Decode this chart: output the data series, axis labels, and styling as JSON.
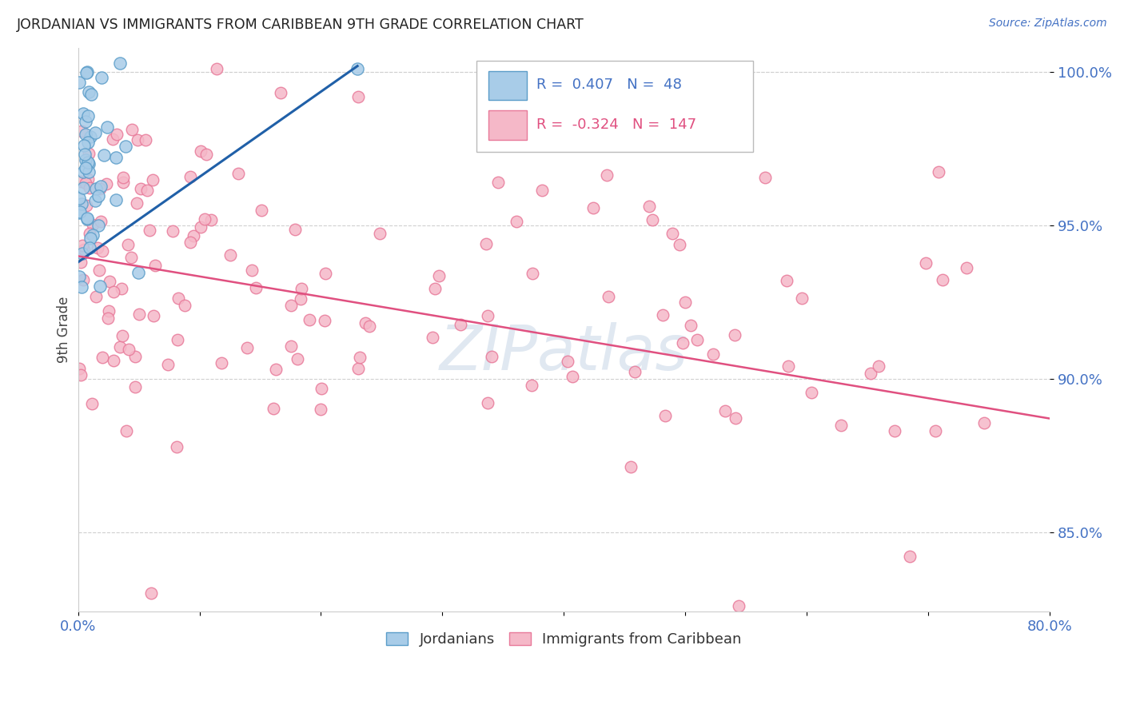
{
  "title": "JORDANIAN VS IMMIGRANTS FROM CARIBBEAN 9TH GRADE CORRELATION CHART",
  "source": "Source: ZipAtlas.com",
  "ylabel": "9th Grade",
  "xlim": [
    0.0,
    0.8
  ],
  "ylim": [
    0.824,
    1.008
  ],
  "yticks": [
    0.85,
    0.9,
    0.95,
    1.0
  ],
  "ytick_labels": [
    "85.0%",
    "90.0%",
    "95.0%",
    "100.0%"
  ],
  "xtick_labels": [
    "0.0%",
    "",
    "",
    "",
    "",
    "",
    "",
    "",
    "80.0%"
  ],
  "legend_r_blue": "0.407",
  "legend_n_blue": "48",
  "legend_r_pink": "-0.324",
  "legend_n_pink": "147",
  "legend_label_blue": "Jordanians",
  "legend_label_pink": "Immigrants from Caribbean",
  "blue_fill": "#a8cce8",
  "blue_edge": "#5b9dc9",
  "pink_fill": "#f5b8c8",
  "pink_edge": "#e87a9a",
  "blue_line": "#2060a8",
  "pink_line": "#e05080",
  "background_color": "#ffffff",
  "grid_color": "#d0d0d0",
  "title_color": "#222222",
  "tick_color": "#4472c4",
  "watermark_color": "#ccd9e8",
  "blue_trend_x": [
    0.0,
    0.23
  ],
  "blue_trend_y": [
    0.938,
    1.002
  ],
  "pink_trend_x": [
    0.0,
    0.8
  ],
  "pink_trend_y": [
    0.94,
    0.887
  ]
}
